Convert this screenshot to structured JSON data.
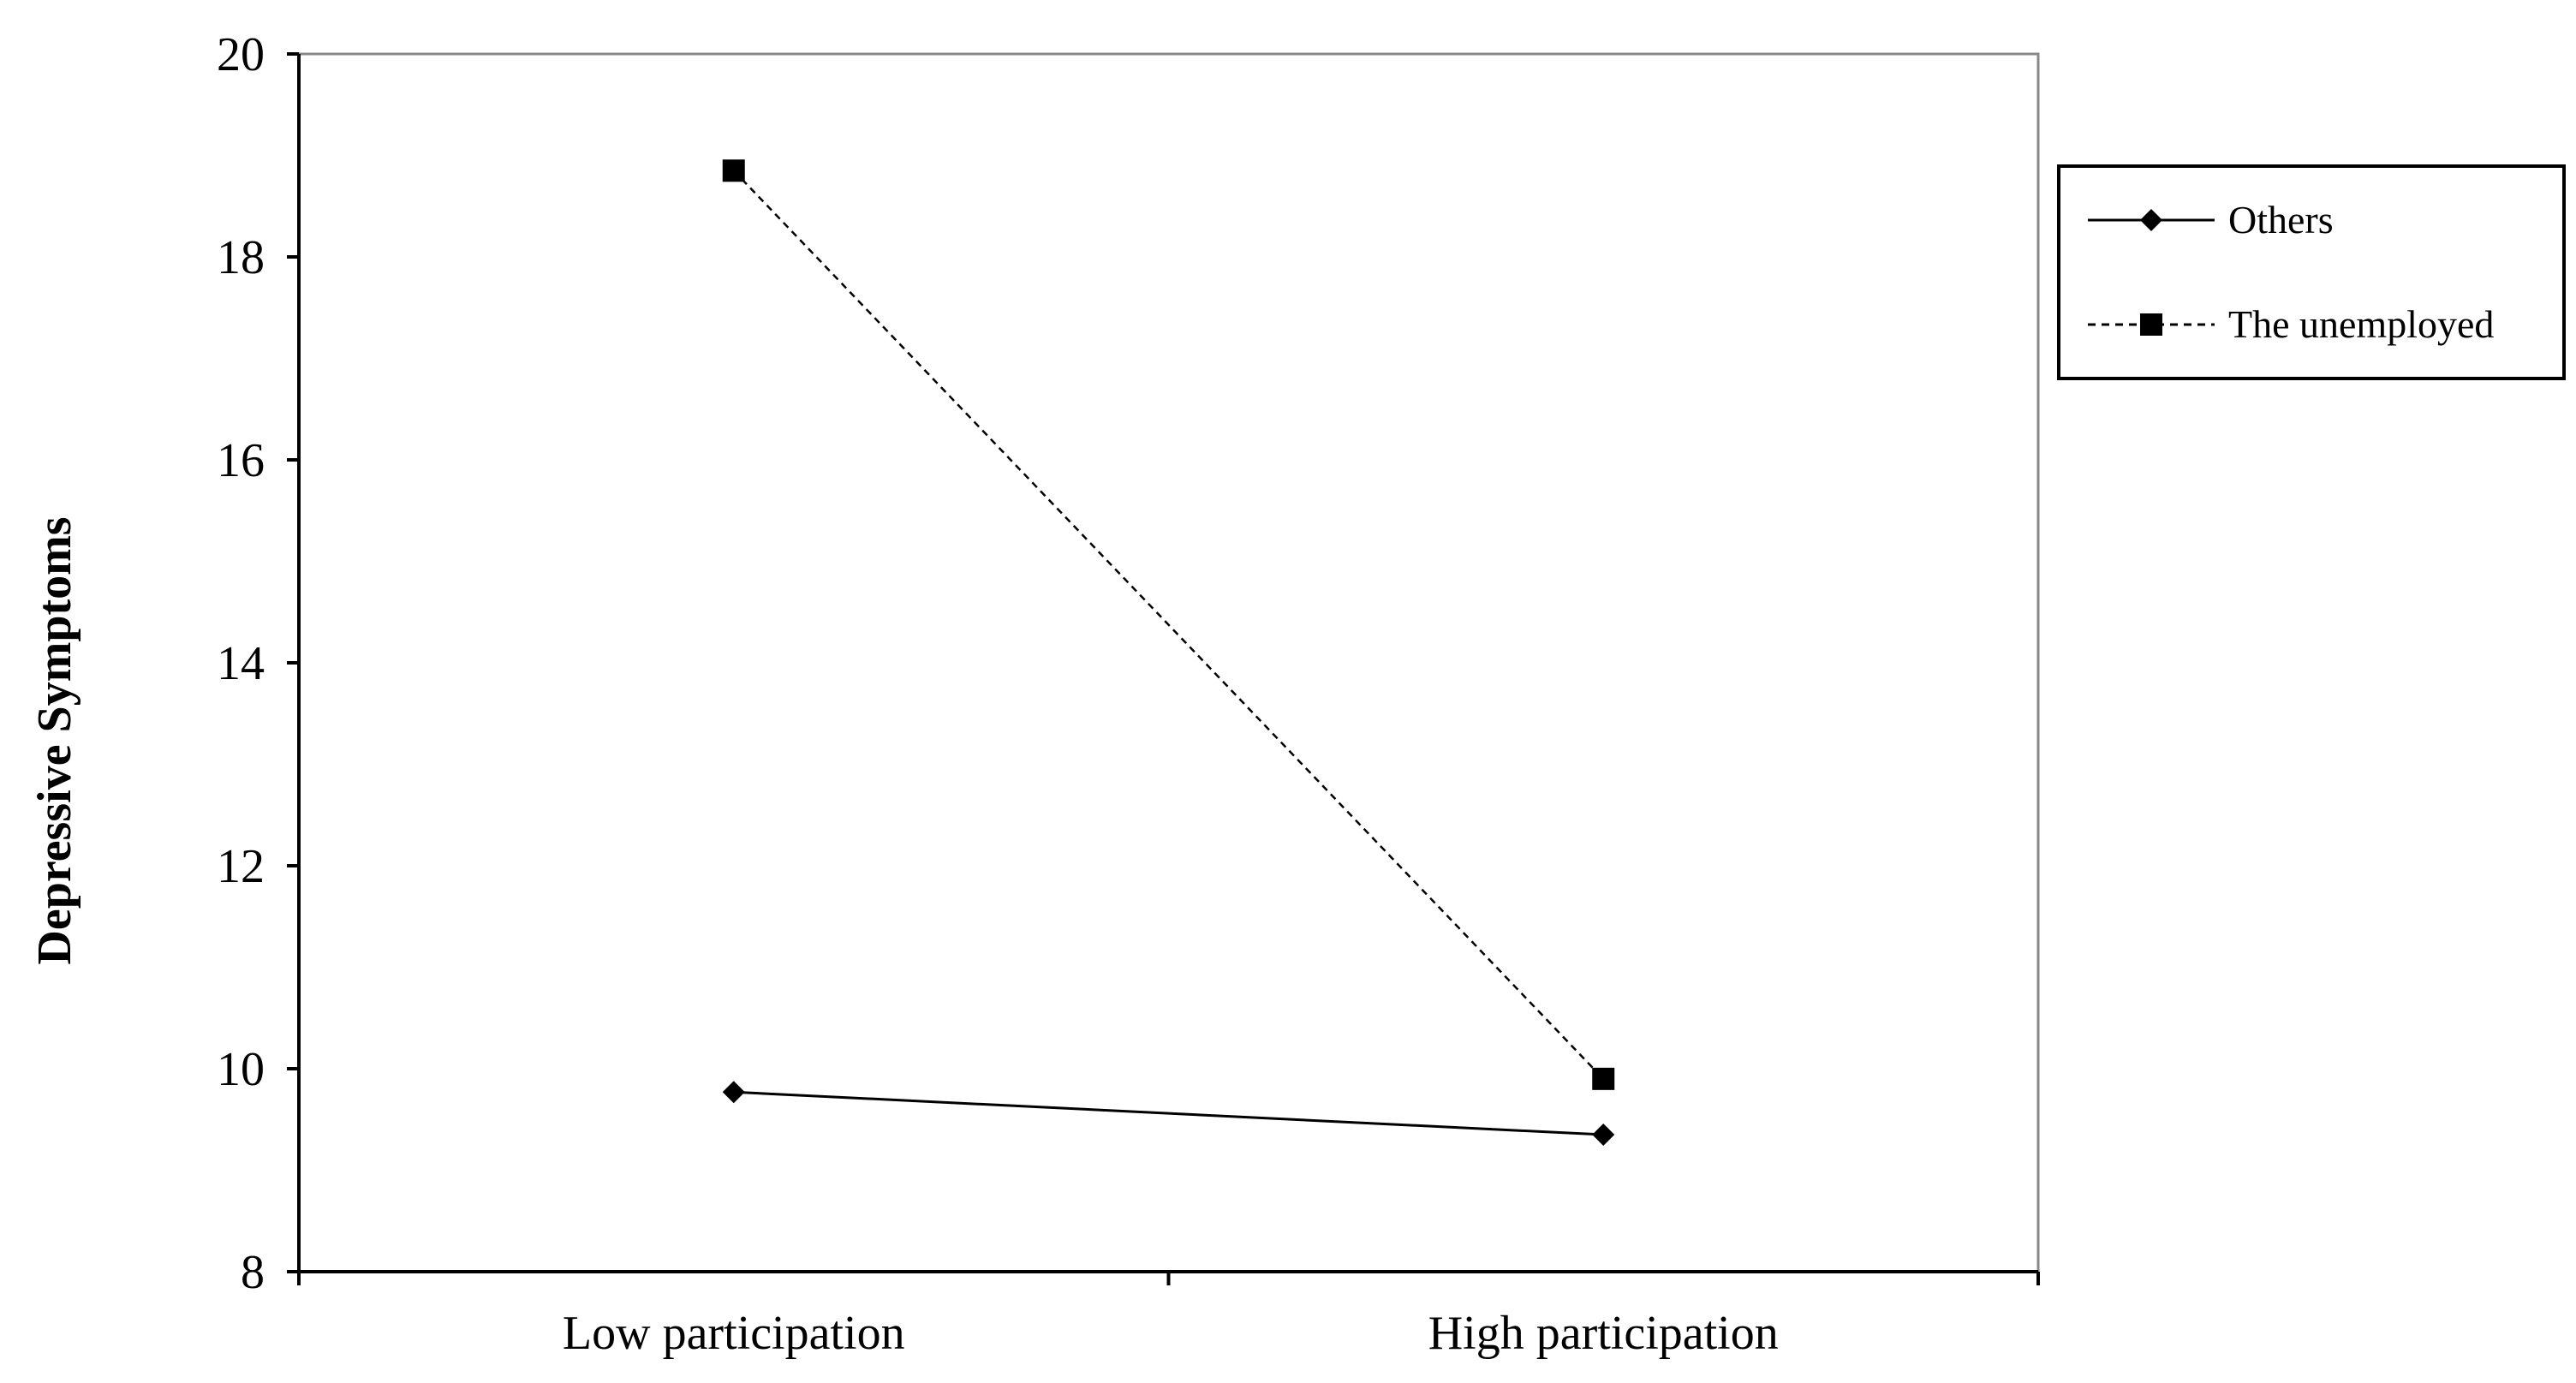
{
  "chart_data": {
    "type": "line",
    "categories": [
      "Low participation",
      "High participation"
    ],
    "ylabel": "Depressive Symptoms",
    "xlabel": "",
    "title": "",
    "ylim": [
      8,
      20
    ],
    "yticks": [
      8,
      10,
      12,
      14,
      16,
      18,
      20
    ],
    "grid": false,
    "legend_position": "right",
    "series": [
      {
        "name": "Others",
        "values": [
          9.77,
          9.35
        ],
        "line_style": "solid",
        "marker": "diamond",
        "color": "#000000"
      },
      {
        "name": "The unemployed",
        "values": [
          18.85,
          9.9
        ],
        "line_style": "dashed",
        "marker": "square",
        "color": "#000000"
      }
    ]
  }
}
